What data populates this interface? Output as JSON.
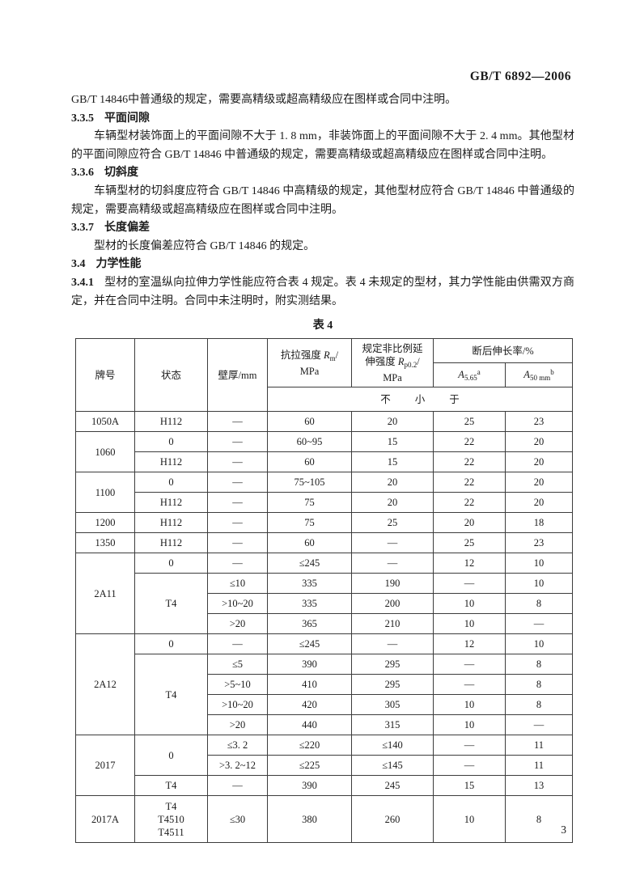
{
  "page": {
    "doc_number": "GB/T 6892—2006",
    "page_number": "3"
  },
  "sections": [
    {
      "style": "body",
      "indent": false,
      "text": "GB/T 14846中普通级的规定，需要高精级或超高精级应在图样或合同中注明。"
    },
    {
      "style": "clause",
      "num": "3.3.5",
      "title": "平面间隙"
    },
    {
      "style": "body",
      "indent": true,
      "text": "车辆型材装饰面上的平面间隙不大于 1. 8 mm，非装饰面上的平面间隙不大于 2. 4 mm。其他型材的平面间隙应符合 GB/T 14846 中普通级的规定，需要高精级或超高精级应在图样或合同中注明。"
    },
    {
      "style": "clause",
      "num": "3.3.6",
      "title": "切斜度"
    },
    {
      "style": "body",
      "indent": true,
      "text": "车辆型材的切斜度应符合 GB/T 14846 中高精级的规定，其他型材应符合 GB/T 14846 中普通级的规定，需要高精级或超高精级应在图样或合同中注明。"
    },
    {
      "style": "clause",
      "num": "3.3.7",
      "title": "长度偏差"
    },
    {
      "style": "body",
      "indent": true,
      "text": "型材的长度偏差应符合 GB/T 14846 的规定。"
    },
    {
      "style": "clause",
      "num": "3.4",
      "title": "力学性能"
    },
    {
      "style": "numbered",
      "num": "3.4.1",
      "text": "型材的室温纵向拉伸力学性能应符合表 4 规定。表 4 未规定的型材，其力学性能由供需双方商定，并在合同中注明。合同中未注明时，附实测结果。"
    }
  ],
  "table": {
    "caption": "表 4",
    "header": {
      "grade": "牌号",
      "temper": "状态",
      "wall": "壁厚/mm",
      "tensile_label": "抗拉强度 ",
      "tensile_sym": "R",
      "tensile_sub": "m",
      "tensile_slash": "/",
      "tensile_unit": "MPa",
      "proof_line1": "规定非比例延",
      "proof_line2": "伸强度 ",
      "proof_sym": "R",
      "proof_sub": "p0.2",
      "proof_slash": "/",
      "proof_unit": "MPa",
      "elongation": "断后伸长率/%",
      "a1_base": "A",
      "a1_sub": "5.65",
      "a1_sup": "a",
      "a2_base": "A",
      "a2_sub": "50 mm",
      "a2_sup": "b",
      "not_less_than": "不小于"
    },
    "rows": [
      [
        {
          "v": "1050A"
        },
        {
          "v": "H112"
        },
        {
          "v": "—"
        },
        {
          "v": "60"
        },
        {
          "v": "20"
        },
        {
          "v": "25"
        },
        {
          "v": "23"
        }
      ],
      [
        {
          "v": "1060",
          "rs": 2
        },
        {
          "v": "0"
        },
        {
          "v": "—"
        },
        {
          "v": "60~95"
        },
        {
          "v": "15"
        },
        {
          "v": "22"
        },
        {
          "v": "20"
        }
      ],
      [
        {
          "v": "H112"
        },
        {
          "v": "—"
        },
        {
          "v": "60"
        },
        {
          "v": "15"
        },
        {
          "v": "22"
        },
        {
          "v": "20"
        }
      ],
      [
        {
          "v": "1100",
          "rs": 2
        },
        {
          "v": "0"
        },
        {
          "v": "—"
        },
        {
          "v": "75~105"
        },
        {
          "v": "20"
        },
        {
          "v": "22"
        },
        {
          "v": "20"
        }
      ],
      [
        {
          "v": "H112"
        },
        {
          "v": "—"
        },
        {
          "v": "75"
        },
        {
          "v": "20"
        },
        {
          "v": "22"
        },
        {
          "v": "20"
        }
      ],
      [
        {
          "v": "1200"
        },
        {
          "v": "H112"
        },
        {
          "v": "—"
        },
        {
          "v": "75"
        },
        {
          "v": "25"
        },
        {
          "v": "20"
        },
        {
          "v": "18"
        }
      ],
      [
        {
          "v": "1350"
        },
        {
          "v": "H112"
        },
        {
          "v": "—"
        },
        {
          "v": "60"
        },
        {
          "v": "—"
        },
        {
          "v": "25"
        },
        {
          "v": "23"
        }
      ],
      [
        {
          "v": "2A11",
          "rs": 4
        },
        {
          "v": "0"
        },
        {
          "v": "—"
        },
        {
          "v": "≤245"
        },
        {
          "v": "—"
        },
        {
          "v": "12"
        },
        {
          "v": "10"
        }
      ],
      [
        {
          "v": "T4",
          "rs": 3
        },
        {
          "v": "≤10"
        },
        {
          "v": "335"
        },
        {
          "v": "190"
        },
        {
          "v": "—"
        },
        {
          "v": "10"
        }
      ],
      [
        {
          "v": ">10~20"
        },
        {
          "v": "335"
        },
        {
          "v": "200"
        },
        {
          "v": "10"
        },
        {
          "v": "8"
        }
      ],
      [
        {
          "v": ">20"
        },
        {
          "v": "365"
        },
        {
          "v": "210"
        },
        {
          "v": "10"
        },
        {
          "v": "—"
        }
      ],
      [
        {
          "v": "2A12",
          "rs": 5
        },
        {
          "v": "0"
        },
        {
          "v": "—"
        },
        {
          "v": "≤245"
        },
        {
          "v": "—"
        },
        {
          "v": "12"
        },
        {
          "v": "10"
        }
      ],
      [
        {
          "v": "T4",
          "rs": 4
        },
        {
          "v": "≤5"
        },
        {
          "v": "390"
        },
        {
          "v": "295"
        },
        {
          "v": "—"
        },
        {
          "v": "8"
        }
      ],
      [
        {
          "v": ">5~10"
        },
        {
          "v": "410"
        },
        {
          "v": "295"
        },
        {
          "v": "—"
        },
        {
          "v": "8"
        }
      ],
      [
        {
          "v": ">10~20"
        },
        {
          "v": "420"
        },
        {
          "v": "305"
        },
        {
          "v": "10"
        },
        {
          "v": "8"
        }
      ],
      [
        {
          "v": ">20"
        },
        {
          "v": "440"
        },
        {
          "v": "315"
        },
        {
          "v": "10"
        },
        {
          "v": "—"
        }
      ],
      [
        {
          "v": "2017",
          "rs": 3
        },
        {
          "v": "0",
          "rs": 2
        },
        {
          "v": "≤3. 2"
        },
        {
          "v": "≤220"
        },
        {
          "v": "≤140"
        },
        {
          "v": "—"
        },
        {
          "v": "11"
        }
      ],
      [
        {
          "v": ">3. 2~12"
        },
        {
          "v": "≤225"
        },
        {
          "v": "≤145"
        },
        {
          "v": "—"
        },
        {
          "v": "11"
        }
      ],
      [
        {
          "v": "T4"
        },
        {
          "v": "—"
        },
        {
          "v": "390"
        },
        {
          "v": "245"
        },
        {
          "v": "15"
        },
        {
          "v": "13"
        }
      ],
      [
        {
          "v": "2017A"
        },
        {
          "v": "T4\nT4510\nT4511"
        },
        {
          "v": "≤30"
        },
        {
          "v": "380"
        },
        {
          "v": "260"
        },
        {
          "v": "10"
        },
        {
          "v": "8"
        }
      ]
    ]
  }
}
